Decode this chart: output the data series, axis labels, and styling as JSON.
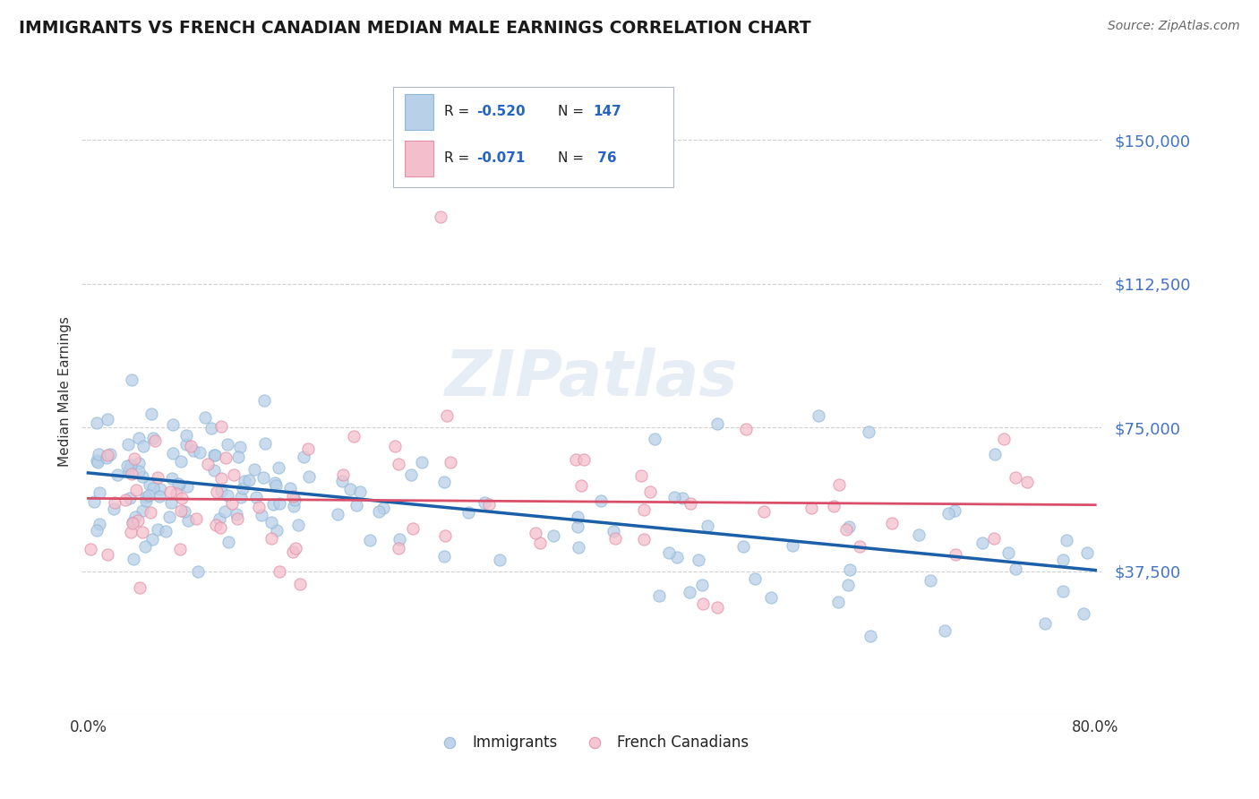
{
  "title": "IMMIGRANTS VS FRENCH CANADIAN MEDIAN MALE EARNINGS CORRELATION CHART",
  "source": "Source: ZipAtlas.com",
  "xlabel": "",
  "ylabel": "Median Male Earnings",
  "watermark": "ZIPatlas",
  "xlim": [
    -0.005,
    0.805
  ],
  "ylim": [
    0,
    168750
  ],
  "yticks": [
    0,
    37500,
    75000,
    112500,
    150000
  ],
  "ytick_labels": [
    "",
    "$37,500",
    "$75,000",
    "$112,500",
    "$150,000"
  ],
  "xticks": [
    0.0,
    0.1,
    0.2,
    0.3,
    0.4,
    0.5,
    0.6,
    0.7,
    0.8
  ],
  "immigrants_R": -0.52,
  "immigrants_N": 147,
  "french_R": -0.071,
  "french_N": 76,
  "dot_color_immigrants": "#b8d0e8",
  "dot_color_french": "#f4bfcc",
  "line_color_immigrants": "#1a5fa8",
  "line_color_french": "#d94f6a",
  "dot_edge_immigrants": "#90b8d8",
  "dot_edge_french": "#e090a8",
  "background_color": "#ffffff",
  "title_color": "#1a1a1a",
  "source_color": "#666666",
  "ylabel_color": "#333333",
  "ytick_color": "#4472c4",
  "xtick_color": "#333333",
  "legend_text_color": "#222222",
  "legend_R_color": "#2563c4",
  "grid_color": "#d0d0d0",
  "grid_style": "--",
  "scatter_alpha": 0.75,
  "scatter_size": 90,
  "scatter_linewidth": 0.8
}
